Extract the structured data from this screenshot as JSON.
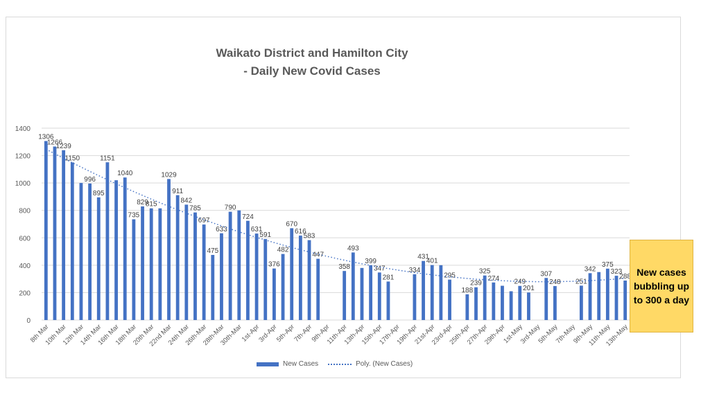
{
  "chart_data": {
    "type": "bar",
    "title_line1": "Waikato District and Hamilton City",
    "title_line2": "- Daily New Covid Cases",
    "ylim": [
      0,
      1400
    ],
    "yticks": [
      0,
      200,
      400,
      600,
      800,
      1000,
      1200,
      1400
    ],
    "grid": true,
    "legend_position": "bottom",
    "bar_color": "#4472c4",
    "tick_labels": [
      "8th Mar",
      "10th Mar",
      "12th Mar",
      "14th Mar",
      "16th Mar",
      "18th Mar",
      "20th Mar",
      "22nd Mar",
      "24th Mar",
      "26th-Mar",
      "28th-Mar",
      "30th-Mar",
      "1st-Apr",
      "3rd-Apr",
      "5th-Apr",
      "7th-Apr",
      "9th-Apr",
      "11th-Apr",
      "13th-Apr",
      "15th-Apr",
      "17th-Apr",
      "19th-Apr",
      "21st-Apr",
      "23rd-Apr",
      "25th-Apr",
      "27th-Apr",
      "29th-Apr",
      "1st-May",
      "3rd-May",
      "5th-May",
      "7th-May",
      "9th-May",
      "11th-May",
      "13th-May"
    ],
    "series": [
      {
        "name": "New Cases",
        "values": [
          1306,
          1266,
          1239,
          1150,
          1000,
          996,
          895,
          1151,
          1020,
          1040,
          735,
          829,
          815,
          815,
          1029,
          911,
          842,
          785,
          697,
          475,
          633,
          790,
          800,
          724,
          631,
          591,
          376,
          482,
          670,
          616,
          583,
          447,
          null,
          null,
          358,
          493,
          380,
          399,
          347,
          281,
          null,
          null,
          334,
          431,
          401,
          400,
          295,
          null,
          188,
          239,
          325,
          274,
          250,
          210,
          249,
          201,
          null,
          307,
          248,
          null,
          null,
          251,
          342,
          350,
          375,
          323,
          288
        ],
        "labels": [
          "1306",
          "1266",
          "1239",
          "1150",
          null,
          "996",
          "895",
          "1151",
          null,
          "1040",
          "735",
          "829",
          "815",
          null,
          "1029",
          "911",
          "842",
          "785",
          "697",
          "475",
          "633",
          "790",
          null,
          "724",
          "631",
          "591",
          "376",
          "482",
          "670",
          "616",
          "583",
          "447",
          null,
          null,
          "358",
          "493",
          null,
          "399",
          "347",
          "281",
          null,
          null,
          "334",
          "431",
          "401",
          null,
          "295",
          null,
          "188",
          "239",
          "325",
          "274",
          null,
          null,
          "249",
          "201",
          null,
          "307",
          "248",
          null,
          null,
          "251",
          "342",
          null,
          "375",
          "323",
          "288"
        ]
      },
      {
        "name": "Poly. (New Cases)",
        "type": "trendline",
        "style": "dotted"
      }
    ],
    "annotation": {
      "text": "New cases bubbling up to 300 a day",
      "background": "#ffd966"
    }
  }
}
